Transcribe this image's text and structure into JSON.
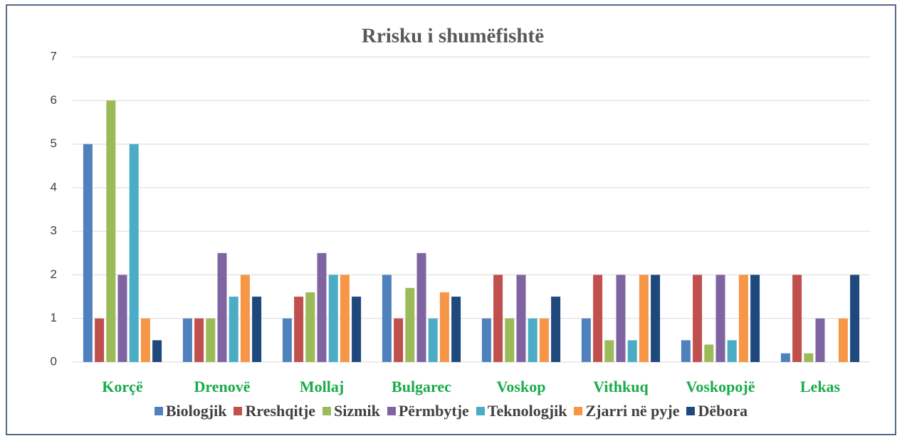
{
  "chart_data": {
    "type": "bar",
    "title": "Rrisku i shumëfishtë",
    "categories": [
      "Korçë",
      "Drenovë",
      "Mollaj",
      "Bulgarec",
      "Voskop",
      "Vithkuq",
      "Voskopojë",
      "Lekas"
    ],
    "series": [
      {
        "name": "Biologjik",
        "color": "#4f81bd",
        "values": [
          5,
          1,
          1,
          2,
          1,
          1,
          0.5,
          0.2
        ]
      },
      {
        "name": "Rreshqitje",
        "color": "#c0504d",
        "values": [
          1,
          1,
          1.5,
          1,
          2,
          2,
          2,
          2
        ]
      },
      {
        "name": "Sizmik",
        "color": "#9bbb59",
        "values": [
          6,
          1,
          1.6,
          1.7,
          1,
          0.5,
          0.4,
          0.2
        ]
      },
      {
        "name": "Përmbytje",
        "color": "#8064a2",
        "values": [
          2,
          2.5,
          2.5,
          2.5,
          2,
          2,
          2,
          1
        ]
      },
      {
        "name": "Teknologjik",
        "color": "#4bacc6",
        "values": [
          5,
          1.5,
          2,
          1,
          1,
          0.5,
          0.5,
          0
        ]
      },
      {
        "name": "Zjarri në pyje",
        "color": "#f79646",
        "values": [
          1,
          2,
          2,
          1.6,
          1,
          2,
          2,
          1
        ]
      },
      {
        "name": "Dëbora",
        "color": "#1f497d",
        "values": [
          0.5,
          1.5,
          1.5,
          1.5,
          1.5,
          2,
          2,
          2
        ]
      }
    ],
    "ylim": [
      0,
      7
    ],
    "yticks": [
      0,
      1,
      2,
      3,
      4,
      5,
      6,
      7
    ],
    "grid": true,
    "legend": "bottom"
  }
}
